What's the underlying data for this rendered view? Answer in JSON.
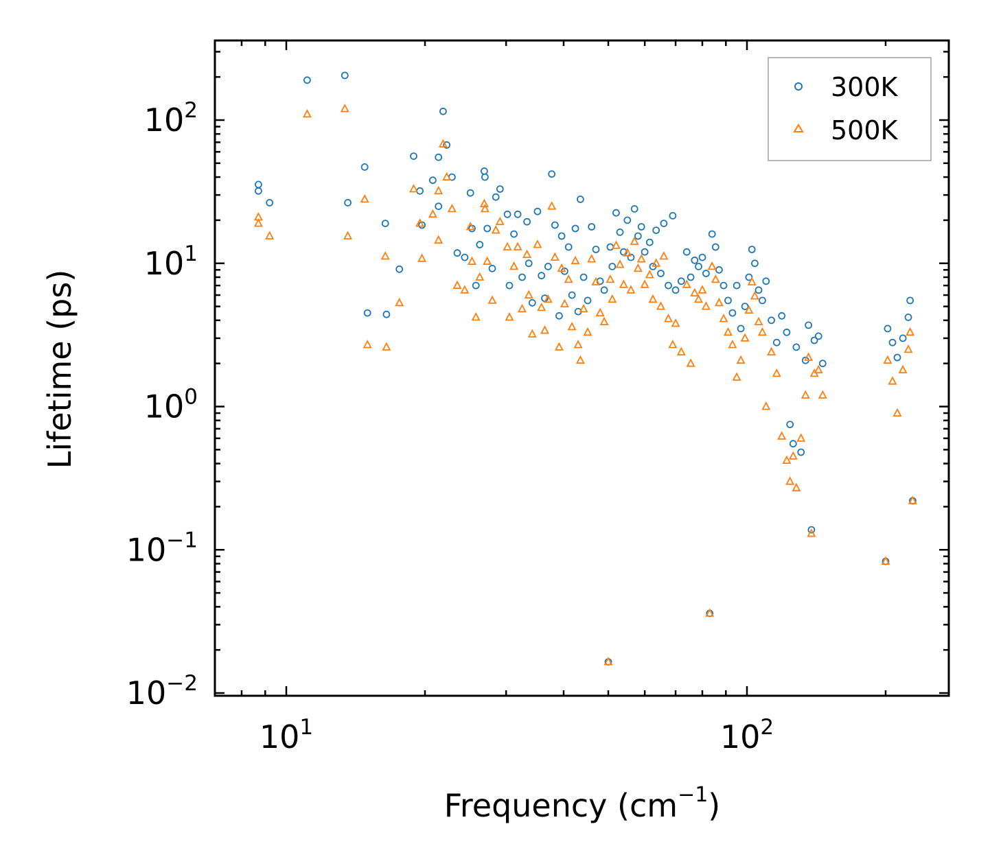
{
  "chart_data": {
    "type": "scatter",
    "xscale": "log",
    "yscale": "log",
    "xlim": [
      7.0,
      260
    ],
    "ylim": [
      0.0095,
      350
    ],
    "xlabel": "Frequency (cm",
    "xlabel_exp": "−1",
    "xlabel_suffix": ")",
    "ylabel": "Lifetime (ps)",
    "x_ticks": [
      {
        "value": 10,
        "base": "10",
        "exp": "1"
      },
      {
        "value": 100,
        "base": "10",
        "exp": "2"
      }
    ],
    "y_ticks": [
      {
        "value": 0.01,
        "base": "10",
        "exp": "−2"
      },
      {
        "value": 0.1,
        "base": "10",
        "exp": "−1"
      },
      {
        "value": 1,
        "base": "10",
        "exp": "0"
      },
      {
        "value": 10,
        "base": "10",
        "exp": "1"
      },
      {
        "value": 100,
        "base": "10",
        "exp": "2"
      }
    ],
    "legend_position": "top-right",
    "series": [
      {
        "name": "300K",
        "marker": "circle",
        "color": "#1f77b4",
        "points": [
          [
            8.7,
            35.5
          ],
          [
            8.7,
            32
          ],
          [
            9.2,
            26.5
          ],
          [
            11.1,
            190
          ],
          [
            13.4,
            205
          ],
          [
            13.6,
            26.5
          ],
          [
            14.8,
            47
          ],
          [
            15.0,
            4.5
          ],
          [
            16.4,
            19
          ],
          [
            16.5,
            4.4
          ],
          [
            17.6,
            9.1
          ],
          [
            18.9,
            56
          ],
          [
            19.5,
            32
          ],
          [
            19.7,
            18.5
          ],
          [
            20.8,
            38
          ],
          [
            21.4,
            55
          ],
          [
            21.4,
            25
          ],
          [
            21.9,
            115
          ],
          [
            22.3,
            67
          ],
          [
            22.9,
            40
          ],
          [
            23.5,
            11.8
          ],
          [
            24.4,
            11
          ],
          [
            25.1,
            31
          ],
          [
            25.3,
            17.5
          ],
          [
            25.8,
            7
          ],
          [
            26.3,
            13.5
          ],
          [
            26.9,
            44
          ],
          [
            27.0,
            40
          ],
          [
            27.3,
            17.5
          ],
          [
            28.0,
            9.2
          ],
          [
            28.5,
            29
          ],
          [
            29.1,
            33
          ],
          [
            30.2,
            22
          ],
          [
            30.5,
            7.0
          ],
          [
            31.2,
            16
          ],
          [
            31.8,
            22
          ],
          [
            32.5,
            8.0
          ],
          [
            33.3,
            19.5
          ],
          [
            33.6,
            10
          ],
          [
            34.2,
            5.3
          ],
          [
            35.1,
            23
          ],
          [
            35.8,
            8.2
          ],
          [
            36.4,
            5.7
          ],
          [
            37.0,
            9.5
          ],
          [
            37.7,
            42
          ],
          [
            38.3,
            18.5
          ],
          [
            39.1,
            4.3
          ],
          [
            39.6,
            15.5
          ],
          [
            40.2,
            8.8
          ],
          [
            41.0,
            13
          ],
          [
            41.7,
            6.0
          ],
          [
            42.4,
            17.5
          ],
          [
            43.0,
            4.6
          ],
          [
            43.5,
            28
          ],
          [
            44.2,
            8.0
          ],
          [
            45.1,
            5.5
          ],
          [
            46.0,
            18.0
          ],
          [
            47.0,
            12.5
          ],
          [
            48.0,
            7.5
          ],
          [
            49.0,
            6.5
          ],
          [
            50.0,
            0.0165
          ],
          [
            50.5,
            13
          ],
          [
            51.0,
            9.5
          ],
          [
            52.0,
            22.5
          ],
          [
            53.0,
            16.5
          ],
          [
            54.0,
            12
          ],
          [
            55.0,
            20
          ],
          [
            56.0,
            11
          ],
          [
            57.0,
            24
          ],
          [
            58.0,
            15.5
          ],
          [
            59.0,
            18
          ],
          [
            60.0,
            12
          ],
          [
            61.5,
            14
          ],
          [
            62.5,
            9.5
          ],
          [
            63.5,
            17
          ],
          [
            65.0,
            8.5
          ],
          [
            66.0,
            19
          ],
          [
            67.5,
            7.0
          ],
          [
            69.0,
            21.5
          ],
          [
            70.0,
            6.5
          ],
          [
            72.0,
            7.5
          ],
          [
            74.0,
            12
          ],
          [
            75.5,
            8.0
          ],
          [
            77.0,
            10.5
          ],
          [
            78.5,
            9.5
          ],
          [
            80.0,
            11
          ],
          [
            81.5,
            8.5
          ],
          [
            83.0,
            0.036
          ],
          [
            84.0,
            16
          ],
          [
            85.5,
            13
          ],
          [
            87.0,
            9.0
          ],
          [
            89.0,
            7.0
          ],
          [
            91.0,
            5.5
          ],
          [
            93.0,
            4.5
          ],
          [
            95.0,
            7.0
          ],
          [
            97.0,
            3.5
          ],
          [
            99.0,
            5.0
          ],
          [
            101.0,
            8.0
          ],
          [
            102.5,
            12.5
          ],
          [
            104.0,
            10
          ],
          [
            106.0,
            6.5
          ],
          [
            108.0,
            5.5
          ],
          [
            110.0,
            7.5
          ],
          [
            113.0,
            4.0
          ],
          [
            116.0,
            2.8
          ],
          [
            119.0,
            4.3
          ],
          [
            122.0,
            3.3
          ],
          [
            124.0,
            0.75
          ],
          [
            126.0,
            0.55
          ],
          [
            128.0,
            2.6
          ],
          [
            131.0,
            0.48
          ],
          [
            134.0,
            2.1
          ],
          [
            136.0,
            3.7
          ],
          [
            138.0,
            0.138
          ],
          [
            140.0,
            2.9
          ],
          [
            143.0,
            3.1
          ],
          [
            146.0,
            2.0
          ],
          [
            200.0,
            0.083
          ],
          [
            202.0,
            3.5
          ],
          [
            207.0,
            2.8
          ],
          [
            212.0,
            2.2
          ],
          [
            218.0,
            3.0
          ],
          [
            224.0,
            4.2
          ],
          [
            226.0,
            5.5
          ],
          [
            229.0,
            0.22
          ]
        ]
      },
      {
        "name": "500K",
        "marker": "triangle",
        "color": "#ff7f0e",
        "points": [
          [
            8.7,
            21
          ],
          [
            8.7,
            19
          ],
          [
            9.2,
            15.5
          ],
          [
            11.1,
            110
          ],
          [
            13.4,
            120
          ],
          [
            13.6,
            15.5
          ],
          [
            14.8,
            28
          ],
          [
            15.0,
            2.7
          ],
          [
            16.4,
            11.2
          ],
          [
            16.5,
            2.6
          ],
          [
            17.6,
            5.3
          ],
          [
            18.9,
            33
          ],
          [
            19.5,
            19
          ],
          [
            19.7,
            10.8
          ],
          [
            20.8,
            22
          ],
          [
            21.4,
            32
          ],
          [
            21.4,
            14.5
          ],
          [
            21.9,
            68
          ],
          [
            22.3,
            40
          ],
          [
            22.9,
            24
          ],
          [
            23.5,
            7.0
          ],
          [
            24.4,
            6.5
          ],
          [
            25.1,
            18
          ],
          [
            25.3,
            10.3
          ],
          [
            25.8,
            4.2
          ],
          [
            26.3,
            8.0
          ],
          [
            26.9,
            26
          ],
          [
            27.0,
            24
          ],
          [
            27.3,
            10.3
          ],
          [
            28.0,
            5.5
          ],
          [
            28.5,
            17
          ],
          [
            29.1,
            19.5
          ],
          [
            30.2,
            13
          ],
          [
            30.5,
            4.2
          ],
          [
            31.2,
            9.5
          ],
          [
            31.8,
            13
          ],
          [
            32.5,
            4.8
          ],
          [
            33.3,
            11.5
          ],
          [
            33.6,
            6.0
          ],
          [
            34.2,
            3.2
          ],
          [
            35.1,
            13.5
          ],
          [
            35.8,
            4.9
          ],
          [
            36.4,
            3.4
          ],
          [
            37.0,
            5.6
          ],
          [
            37.7,
            25
          ],
          [
            38.3,
            11
          ],
          [
            39.1,
            2.6
          ],
          [
            39.6,
            9.2
          ],
          [
            40.2,
            5.2
          ],
          [
            41.0,
            7.7
          ],
          [
            41.7,
            3.6
          ],
          [
            42.4,
            10.4
          ],
          [
            43.0,
            2.7
          ],
          [
            43.5,
            2.1
          ],
          [
            44.2,
            4.8
          ],
          [
            45.1,
            3.3
          ],
          [
            46.0,
            10.7
          ],
          [
            47.0,
            7.4
          ],
          [
            48.0,
            4.5
          ],
          [
            49.0,
            3.9
          ],
          [
            50.0,
            0.0165
          ],
          [
            50.5,
            7.7
          ],
          [
            51.0,
            5.6
          ],
          [
            52.0,
            13.3
          ],
          [
            53.0,
            9.8
          ],
          [
            54.0,
            7.1
          ],
          [
            55.0,
            11.8
          ],
          [
            56.0,
            6.5
          ],
          [
            57.0,
            14.2
          ],
          [
            58.0,
            9.2
          ],
          [
            59.0,
            10.7
          ],
          [
            60.0,
            7.1
          ],
          [
            61.5,
            8.3
          ],
          [
            62.5,
            5.6
          ],
          [
            63.5,
            10
          ],
          [
            65.0,
            5.0
          ],
          [
            66.0,
            11.2
          ],
          [
            67.5,
            4.1
          ],
          [
            69.0,
            2.7
          ],
          [
            70.0,
            3.8
          ],
          [
            72.0,
            2.4
          ],
          [
            74.0,
            7.1
          ],
          [
            75.5,
            2.0
          ],
          [
            77.0,
            6.2
          ],
          [
            78.5,
            5.6
          ],
          [
            80.0,
            6.5
          ],
          [
            81.5,
            5.0
          ],
          [
            83.0,
            0.036
          ],
          [
            84.0,
            9.5
          ],
          [
            85.5,
            7.7
          ],
          [
            87.0,
            5.3
          ],
          [
            89.0,
            4.1
          ],
          [
            91.0,
            3.3
          ],
          [
            93.0,
            2.7
          ],
          [
            95.0,
            1.6
          ],
          [
            97.0,
            2.1
          ],
          [
            99.0,
            3.0
          ],
          [
            101.0,
            4.7
          ],
          [
            102.5,
            7.4
          ],
          [
            104.0,
            5.9
          ],
          [
            106.0,
            3.9
          ],
          [
            108.0,
            3.3
          ],
          [
            110.0,
            1.0
          ],
          [
            113.0,
            2.4
          ],
          [
            116.0,
            1.7
          ],
          [
            119.0,
            0.62
          ],
          [
            122.0,
            0.42
          ],
          [
            124.0,
            0.3
          ],
          [
            126.0,
            0.45
          ],
          [
            128.0,
            0.27
          ],
          [
            131.0,
            0.6
          ],
          [
            134.0,
            1.2
          ],
          [
            136.0,
            2.2
          ],
          [
            138.0,
            0.13
          ],
          [
            140.0,
            1.7
          ],
          [
            143.0,
            1.8
          ],
          [
            146.0,
            1.2
          ],
          [
            200.0,
            0.083
          ],
          [
            202.0,
            2.1
          ],
          [
            207.0,
            1.5
          ],
          [
            212.0,
            0.9
          ],
          [
            218.0,
            1.8
          ],
          [
            224.0,
            2.5
          ],
          [
            226.0,
            3.3
          ],
          [
            229.0,
            0.22
          ]
        ]
      }
    ]
  }
}
